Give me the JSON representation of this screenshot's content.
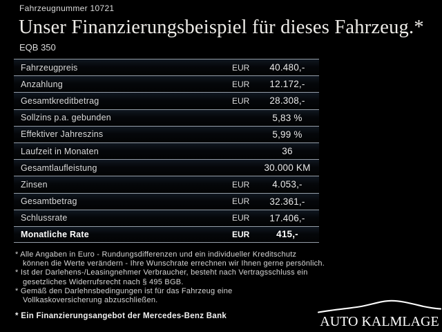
{
  "header": {
    "vehicle_number": "Fahrzeugnummer 10721",
    "title": "Unser Finanzierungsbeispiel für dieses Fahrzeug.*",
    "model": "EQB 350"
  },
  "table": {
    "rows": [
      {
        "label": "Fahrzeugpreis",
        "currency": "EUR",
        "value": "40.480,-",
        "bold": false
      },
      {
        "label": "Anzahlung",
        "currency": "EUR",
        "value": "12.172,-",
        "bold": false
      },
      {
        "label": "Gesamtkreditbetrag",
        "currency": "EUR",
        "value": "28.308,-",
        "bold": false
      },
      {
        "label": "Sollzins p.a. gebunden",
        "currency": "",
        "value": "5,83 %",
        "bold": false
      },
      {
        "label": "Effektiver Jahreszins",
        "currency": "",
        "value": "5,99 %",
        "bold": false
      },
      {
        "label": "Laufzeit in Monaten",
        "currency": "",
        "value": "36",
        "bold": false
      },
      {
        "label": "Gesamtlaufleistung",
        "currency": "",
        "value": "30.000 KM",
        "bold": false
      },
      {
        "label": "Zinsen",
        "currency": "EUR",
        "value": "4.053,-",
        "bold": false
      },
      {
        "label": "Gesamtbetrag",
        "currency": "EUR",
        "value": "32.361,-",
        "bold": false
      },
      {
        "label": "Schlussrate",
        "currency": "EUR",
        "value": "17.406,-",
        "bold": false
      },
      {
        "label": "Monatliche Rate",
        "currency": "EUR",
        "value": "415,-",
        "bold": true
      }
    ]
  },
  "footnotes": {
    "items": [
      {
        "lines": [
          "* Alle Angaben in Euro - Rundungsdifferenzen und ein individueller Kreditschutz",
          "können die Werte verändern - Ihre Wunschrate errechnen wir Ihnen gerne persönlich."
        ]
      },
      {
        "lines": [
          "* Ist der Darlehens-/Leasingnehmer Verbraucher, besteht nach Vertragsschluss ein",
          "gesetzliches Widerrufsrecht nach § 495 BGB."
        ]
      },
      {
        "lines": [
          "* Gemäß den Darlehnsbedingungen ist für das Fahrzeug eine",
          "Vollkaskoversicherung abzuschließen."
        ]
      }
    ],
    "bank_note": "* Ein Finanzierungsangebot der Mercedes-Benz Bank"
  },
  "logo": {
    "dealer_name": "AUTO KALMLAGE",
    "icon": "car-silhouette-icon"
  },
  "colors": {
    "background": "#000000",
    "text": "#e0e0e0",
    "separator": "#969fa9",
    "row_background": "#05070a",
    "highlight_text": "#ffffff"
  }
}
